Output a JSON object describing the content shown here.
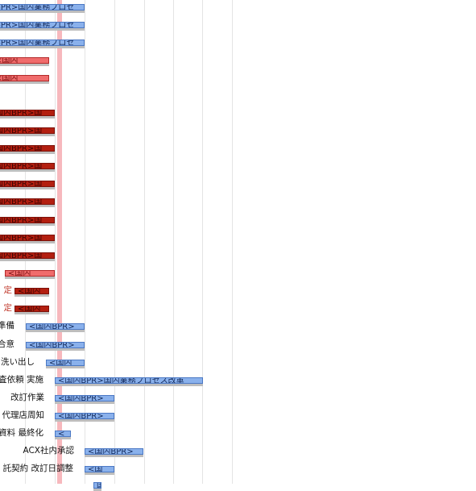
{
  "colors": {
    "blue": "#8ab1ec",
    "red": "#f06c6c",
    "dark_red": "#b31f10",
    "today": "#f7b8bd",
    "grid": "#e4e4e4"
  },
  "rows": [
    {
      "label": "",
      "bar": "BPR>国内業務プロセ",
      "color": "blue"
    },
    {
      "label": "",
      "bar": "BPR>国内業務プロセ",
      "color": "blue"
    },
    {
      "label": "",
      "bar": "BPR>国内業務プロセ",
      "color": "blue"
    },
    {
      "label": "",
      "bar": "<国内",
      "color": "red"
    },
    {
      "label": "",
      "bar": "<国内",
      "color": "red"
    },
    {
      "label": "",
      "bar": "",
      "color": "none"
    },
    {
      "label": "",
      "bar": "国内BPR>国",
      "color": "dark"
    },
    {
      "label": "",
      "bar": "国内BPR>国",
      "color": "dark"
    },
    {
      "label": "",
      "bar": "国内BPR>国",
      "color": "dark"
    },
    {
      "label": "",
      "bar": "国内BPR>国",
      "color": "dark"
    },
    {
      "label": "",
      "bar": "国内BPR>国",
      "color": "dark"
    },
    {
      "label": "",
      "bar": "国内BPR>国",
      "color": "dark"
    },
    {
      "label": "",
      "bar": "国内BPR>国",
      "color": "dark"
    },
    {
      "label": "",
      "bar": "国内BPR>国",
      "color": "dark"
    },
    {
      "label": "",
      "bar": "国内BPR>国",
      "color": "dark"
    },
    {
      "label": "",
      "bar": "<国内",
      "color": "red"
    },
    {
      "label": "定",
      "bar": "<国内",
      "color": "dark"
    },
    {
      "label": "定",
      "bar": "<国内",
      "color": "dark"
    },
    {
      "label": "準備",
      "bar": "<国内BPR>",
      "color": "blue"
    },
    {
      "label": "合意",
      "bar": "<国内BPR>",
      "color": "blue"
    },
    {
      "label": "洗い出し",
      "bar": "<国内",
      "color": "blue"
    },
    {
      "label": "査依頼 実施",
      "bar": "<国内BPR>国内業務プロセス改革",
      "color": "blue"
    },
    {
      "label": "改訂作業",
      "bar": "<国内BPR>",
      "color": "blue"
    },
    {
      "label": "代理店周知",
      "bar": "<国内BPR>",
      "color": "blue"
    },
    {
      "label": "資料 最終化",
      "bar": "<",
      "color": "blue"
    },
    {
      "label": "ACX社内承認",
      "bar": "<国内BPR>",
      "color": "blue"
    },
    {
      "label": "託契約 改訂日調整",
      "bar": "<国",
      "color": "blue"
    },
    {
      "label": "",
      "bar": "国",
      "color": "blue"
    }
  ]
}
